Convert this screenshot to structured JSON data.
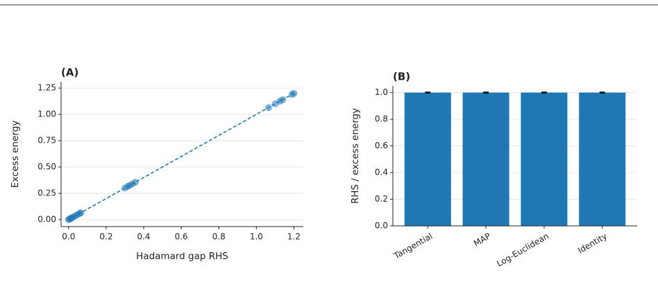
{
  "chart_data": [
    {
      "type": "scatter",
      "title": "(A)",
      "x_label": "Hadamard gap RHS",
      "y_label": "Excess energy",
      "series": [
        {
          "type": "scatter",
          "color": "#1f77b4",
          "x": [
            0,
            0.005,
            0.01,
            0.015,
            0.02,
            0.03,
            0.04,
            0.05,
            0.06,
            0.065,
            0.3,
            0.315,
            0.325,
            0.34,
            0.355,
            1.065,
            1.1,
            1.125,
            1.14,
            1.19,
            1.2
          ],
          "values": [
            0,
            0.005,
            0.01,
            0.015,
            0.02,
            0.03,
            0.04,
            0.05,
            0.06,
            0.065,
            0.3,
            0.315,
            0.325,
            0.34,
            0.355,
            1.065,
            1.1,
            1.125,
            1.14,
            1.19,
            1.2
          ]
        },
        {
          "type": "line",
          "style": "dashed",
          "color": "#1f77b4",
          "x": [
            0,
            1.2
          ],
          "values": [
            0,
            1.2
          ]
        }
      ],
      "xlim": [
        -0.04,
        1.25
      ],
      "ylim": [
        -0.066,
        1.31
      ],
      "xticks": [
        {
          "value": 0,
          "label": "0.0"
        },
        0.2,
        0.4,
        0.6,
        0.8,
        {
          "value": 1,
          "label": "1.0"
        },
        1.2
      ],
      "yticks": [
        {
          "value": 0,
          "label": "0.00"
        },
        0.25,
        {
          "value": 0.5,
          "label": "0.50"
        },
        0.75,
        {
          "value": 1,
          "label": "1.00"
        },
        1.25
      ],
      "grid": true
    },
    {
      "type": "bar",
      "title": "(B)",
      "y_label": "RHS / excess energy",
      "categories": [
        "Tangential",
        "MAP",
        "Log-Euclidean",
        "Identity"
      ],
      "values": [
        1,
        1,
        1,
        1
      ],
      "errors": [
        0.003,
        0.003,
        0.003,
        0.003
      ],
      "color": "#1f77b4",
      "ylim": [
        0,
        1.05
      ],
      "yticks": [
        {
          "value": 0,
          "label": "0.0"
        },
        0.2,
        0.4,
        0.6,
        0.8,
        {
          "value": 1,
          "label": "1.0"
        }
      ],
      "grid": true
    }
  ]
}
